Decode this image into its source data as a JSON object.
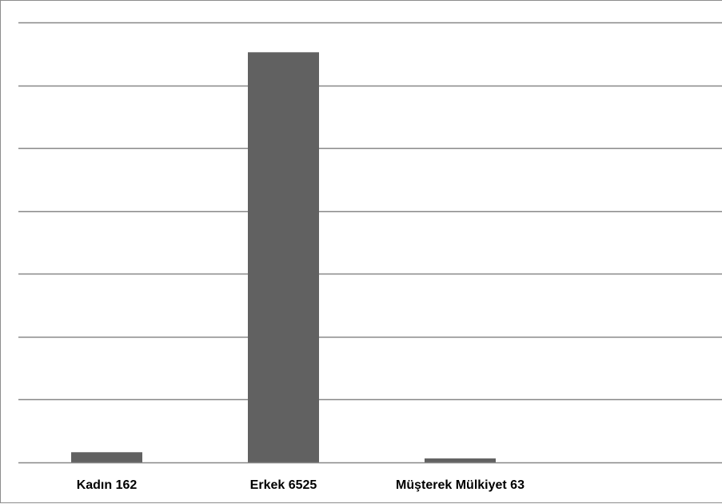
{
  "chart_data": {
    "type": "bar",
    "categories": [
      "Kadın 162",
      "Erkek 6525",
      "Müşterek Mülkiyet 63"
    ],
    "values": [
      162,
      6525,
      63
    ],
    "ylim": [
      0,
      7000
    ],
    "y_tick_step": 1000,
    "grid": true,
    "y_tick_labels_visible": false,
    "legend": "none",
    "colors": {
      "bar": "#616161",
      "grid": "#878787",
      "axis": "#878787",
      "label": "#000000"
    }
  }
}
